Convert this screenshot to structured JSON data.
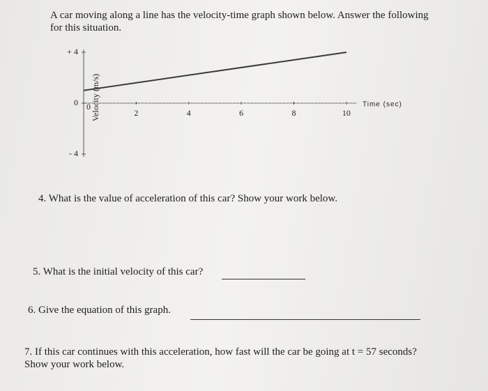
{
  "header": {
    "text": "A car moving along a line has the velocity-time graph shown below. Answer the following for this situation."
  },
  "chart_data": {
    "type": "line",
    "x_label": "Time (sec)",
    "y_label": "Velocity (m/s)",
    "x": [
      0,
      10
    ],
    "series": [
      {
        "color": "#3a3a3a",
        "values": [
          1,
          4
        ]
      }
    ],
    "xlim": [
      0,
      10.4
    ],
    "ylim": [
      -4,
      4
    ],
    "xticks": [
      0,
      2,
      4,
      6,
      8,
      10
    ],
    "yticks": [
      {
        "value": 4,
        "label": "+ 4"
      },
      0,
      {
        "value": -4,
        "label": "- 4"
      }
    ],
    "grid": false
  },
  "questions": [
    {
      "text": "4. What is the value of acceleration of this car? Show your work below."
    },
    {
      "text": "5. What is the initial velocity of this car?"
    },
    {
      "text": "6. Give the equation of this graph."
    },
    {
      "text": "7. If this car continues with this acceleration, how fast will the car be going at t = 57 seconds? Show your work below."
    }
  ]
}
